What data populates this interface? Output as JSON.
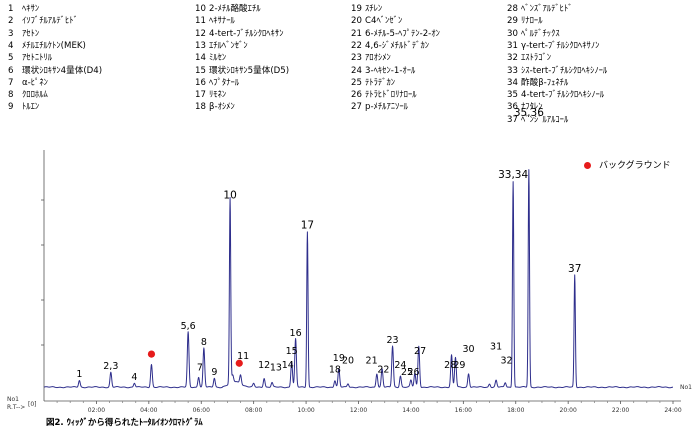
{
  "compound_legend": [
    {
      "num": "1",
      "name": "ﾍｷｻﾝ"
    },
    {
      "num": "2",
      "name": "ｲｿﾌﾞﾁﾙｱﾙﾃﾞﾋﾄﾞ"
    },
    {
      "num": "3",
      "name": "ｱｾﾄﾝ"
    },
    {
      "num": "4",
      "name": "ﾒﾁﾙｴﾁﾙｹﾄﾝ(MEK)"
    },
    {
      "num": "5",
      "name": "ｱｾﾄﾆﾄﾘﾙ"
    },
    {
      "num": "6",
      "name": "環状ｼﾛｷｻﾝ4量体(D4)"
    },
    {
      "num": "7",
      "name": "α-ﾋﾟﾈﾝ"
    },
    {
      "num": "8",
      "name": "ｸﾛﾛﾎﾙﾑ"
    },
    {
      "num": "9",
      "name": "ﾄﾙｴﾝ"
    },
    {
      "num": "10",
      "name": "2-ﾒﾁﾙ酪酸ｴﾁﾙ"
    },
    {
      "num": "11",
      "name": "ﾍｷｻﾅｰﾙ"
    },
    {
      "num": "12",
      "name": "4-tert-ﾌﾞﾁﾙｼｸﾛﾍｷｻﾝ"
    },
    {
      "num": "13",
      "name": "ｴﾁﾙﾍﾞﾝｾﾞﾝ"
    },
    {
      "num": "14",
      "name": "ﾐﾙｾﾝ"
    },
    {
      "num": "15",
      "name": "環状ｼﾛｷｻﾝ5量体(D5)"
    },
    {
      "num": "16",
      "name": "ﾍﾌﾟﾀﾅｰﾙ"
    },
    {
      "num": "17",
      "name": "ﾘﾓﾈﾝ"
    },
    {
      "num": "18",
      "name": "β-ｵｼﾒﾝ"
    },
    {
      "num": "19",
      "name": "ｽﾁﾚﾝ"
    },
    {
      "num": "20",
      "name": "C4ﾍﾞﾝｾﾞﾝ"
    },
    {
      "num": "21",
      "name": "6-ﾒﾁﾙ-5-ﾍﾌﾟﾃﾝ-2-ｵﾝ"
    },
    {
      "num": "22",
      "name": "4,6-ｼﾞﾒﾁﾙﾄﾞﾃﾞｶﾝ"
    },
    {
      "num": "23",
      "name": "ｱﾛｵｼﾒﾝ"
    },
    {
      "num": "24",
      "name": "3-ﾍｷｾﾝ-1-ｵｰﾙ"
    },
    {
      "num": "25",
      "name": "ﾃﾄﾗﾃﾞｶﾝ"
    },
    {
      "num": "26",
      "name": "ﾃﾄﾗﾋﾄﾞﾛﾘﾅﾛｰﾙ"
    },
    {
      "num": "27",
      "name": "p-ﾒﾁﾙｱﾆｿｰﾙ"
    },
    {
      "num": "28",
      "name": "ﾍﾞﾝｽﾞｱﾙﾃﾞﾋﾄﾞ"
    },
    {
      "num": "29",
      "name": "ﾘﾅﾛｰﾙ"
    },
    {
      "num": "30",
      "name": "ﾍﾟﾙﾃﾞﾁｯｸｽ"
    },
    {
      "num": "31",
      "name": "γ-tert-ﾌﾞﾁﾙｼｸﾛﾍｷｻﾉﾝ"
    },
    {
      "num": "32",
      "name": "ｴｽﾄﾗｺﾞﾝ"
    },
    {
      "num": "33",
      "name": "ｼｽ-tert-ﾌﾞﾁﾙｼｸﾛﾍｷｼﾉｰﾙ"
    },
    {
      "num": "34",
      "name": "酢酸β-ﾌｪﾈﾁﾙ"
    },
    {
      "num": "35",
      "name": "4-tert-ﾌﾞﾁﾙｼｸﾛﾍｷｼﾉｰﾙ"
    },
    {
      "num": "36",
      "name": "ﾅﾌﾀﾚﾝ"
    },
    {
      "num": "37",
      "name": "ﾍﾞﾝｼﾞﾙｱﾙｺｰﾙ"
    }
  ],
  "background_legend": {
    "label": "バックグラウンド",
    "color": "#e61b1b"
  },
  "caption": "図2. ｳｨｯｸﾞから得られたﾄｰﾀﾙｲｵﾝｸﾛﾏﾄｸﾞﾗﾑ",
  "axis_labels": {
    "no_left": "No1",
    "rt_left": "R.T-->",
    "zero": "[0]",
    "no_right": "No1"
  },
  "chart_data": {
    "type": "line",
    "series_color": "#2e2e8c",
    "xlim": [
      0,
      24
    ],
    "ylim": [
      0,
      100
    ],
    "x_ticks": [
      "02:00",
      "04:00",
      "06:00",
      "08:00",
      "10:00",
      "12:00",
      "14:00",
      "16:00",
      "18:00",
      "20:00",
      "22:00",
      "24:00"
    ],
    "x_tick_values": [
      2,
      4,
      6,
      8,
      10,
      12,
      14,
      16,
      18,
      20,
      22,
      24
    ],
    "peaks": [
      {
        "rt": 1.35,
        "h": 3
      },
      {
        "rt": 2.55,
        "h": 6.5
      },
      {
        "rt": 3.45,
        "h": 1.8
      },
      {
        "rt": 4.1,
        "h": 10
      },
      {
        "rt": 5.5,
        "h": 24
      },
      {
        "rt": 5.9,
        "h": 4.5
      },
      {
        "rt": 6.1,
        "h": 17
      },
      {
        "rt": 6.5,
        "h": 4
      },
      {
        "rt": 7.1,
        "h": 81
      },
      {
        "rt": 7.2,
        "h": 3
      },
      {
        "rt": 7.5,
        "h": 4
      },
      {
        "rt": 8.0,
        "h": 1.5
      },
      {
        "rt": 8.4,
        "h": 4
      },
      {
        "rt": 8.7,
        "h": 2
      },
      {
        "rt": 9.45,
        "h": 11
      },
      {
        "rt": 9.6,
        "h": 21
      },
      {
        "rt": 10.05,
        "h": 68
      },
      {
        "rt": 11.1,
        "h": 3
      },
      {
        "rt": 11.25,
        "h": 8
      },
      {
        "rt": 11.6,
        "h": 1.5
      },
      {
        "rt": 12.7,
        "h": 6
      },
      {
        "rt": 12.9,
        "h": 8
      },
      {
        "rt": 13.3,
        "h": 18
      },
      {
        "rt": 13.6,
        "h": 5
      },
      {
        "rt": 14.0,
        "h": 3
      },
      {
        "rt": 14.15,
        "h": 6
      },
      {
        "rt": 14.3,
        "h": 18
      },
      {
        "rt": 15.55,
        "h": 14
      },
      {
        "rt": 15.7,
        "h": 13
      },
      {
        "rt": 16.2,
        "h": 6
      },
      {
        "rt": 17.0,
        "h": 1.5
      },
      {
        "rt": 17.25,
        "h": 3
      },
      {
        "rt": 17.6,
        "h": 2
      },
      {
        "rt": 17.9,
        "h": 90
      },
      {
        "rt": 18.5,
        "h": 95
      },
      {
        "rt": 20.25,
        "h": 49
      }
    ],
    "peak_labels": [
      {
        "text": "1",
        "rt": 1.35,
        "h": 3
      },
      {
        "text": "2,3",
        "rt": 2.55,
        "h": 6.5
      },
      {
        "text": "4",
        "rt": 3.45,
        "h": 1.8
      },
      {
        "text": "5,6",
        "rt": 5.5,
        "h": 24
      },
      {
        "text": "7",
        "rt": 5.95,
        "h": 6
      },
      {
        "text": "8",
        "rt": 6.1,
        "h": 17
      },
      {
        "text": "9",
        "rt": 6.5,
        "h": 4
      },
      {
        "text": "10",
        "rt": 7.1,
        "h": 81
      },
      {
        "text": "11",
        "rt": 7.6,
        "h": 11
      },
      {
        "text": "12",
        "rt": 8.4,
        "h": 7
      },
      {
        "text": "13",
        "rt": 8.85,
        "h": 6
      },
      {
        "text": "14",
        "rt": 9.3,
        "h": 7
      },
      {
        "text": "15",
        "rt": 9.45,
        "h": 13
      },
      {
        "text": "16",
        "rt": 9.6,
        "h": 21
      },
      {
        "text": "17",
        "rt": 10.05,
        "h": 68
      },
      {
        "text": "18",
        "rt": 11.1,
        "h": 5
      },
      {
        "text": "19",
        "rt": 11.25,
        "h": 10
      },
      {
        "text": "20",
        "rt": 11.6,
        "h": 9
      },
      {
        "text": "21",
        "rt": 12.5,
        "h": 9
      },
      {
        "text": "22",
        "rt": 12.95,
        "h": 5
      },
      {
        "text": "23",
        "rt": 13.3,
        "h": 18
      },
      {
        "text": "24",
        "rt": 13.6,
        "h": 7
      },
      {
        "text": "25",
        "rt": 13.85,
        "h": 4
      },
      {
        "text": "26",
        "rt": 14.1,
        "h": 4
      },
      {
        "text": "27",
        "rt": 14.35,
        "h": 13
      },
      {
        "text": "28",
        "rt": 15.5,
        "h": 7
      },
      {
        "text": "29",
        "rt": 15.85,
        "h": 7
      },
      {
        "text": "30",
        "rt": 16.2,
        "h": 14
      },
      {
        "text": "31",
        "rt": 17.25,
        "h": 15
      },
      {
        "text": "32",
        "rt": 17.65,
        "h": 9
      },
      {
        "text": "33,34",
        "rt": 17.9,
        "h": 90
      },
      {
        "text": "35,36",
        "rt": 18.5,
        "h": 126
      },
      {
        "text": "37",
        "rt": 20.25,
        "h": 49
      }
    ],
    "background_markers": [
      {
        "rt": 4.1,
        "h": 10
      },
      {
        "rt": 7.45,
        "h": 6
      }
    ]
  }
}
